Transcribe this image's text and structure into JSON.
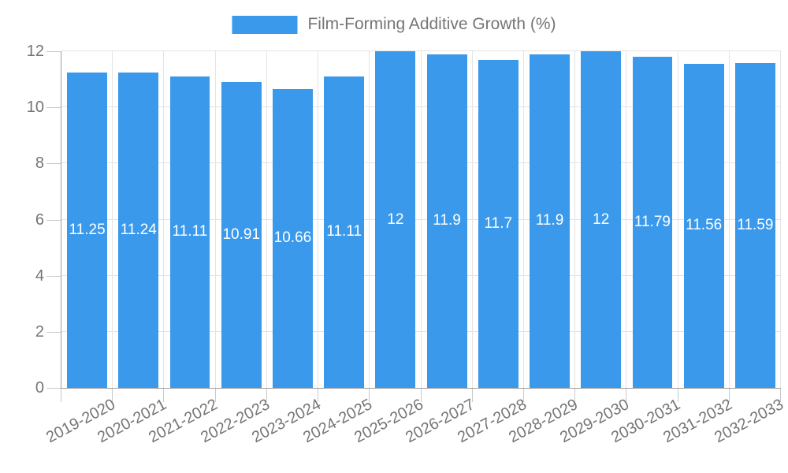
{
  "chart_data": {
    "type": "bar",
    "title": "Film-Forming Additive Growth (%)",
    "categories": [
      "2019-2020",
      "2020-2021",
      "2021-2022",
      "2022-2023",
      "2023-2024",
      "2024-2025",
      "2025-2026",
      "2026-2027",
      "2027-2028",
      "2028-2029",
      "2029-2030",
      "2030-2031",
      "2031-2032",
      "2032-2033"
    ],
    "values": [
      11.25,
      11.24,
      11.11,
      10.91,
      10.66,
      11.11,
      12,
      11.9,
      11.7,
      11.9,
      12,
      11.79,
      11.56,
      11.59
    ],
    "value_labels": [
      "11.25",
      "11.24",
      "11.11",
      "10.91",
      "10.66",
      "11.11",
      "12",
      "11.9",
      "11.7",
      "11.9",
      "12",
      "11.79",
      "11.56",
      "11.59"
    ],
    "xlabel": "",
    "ylabel": "",
    "ylim": [
      0,
      12
    ],
    "yticks": [
      0,
      2,
      4,
      6,
      8,
      10,
      12
    ],
    "grid": true,
    "legend_position": "top-center",
    "value_label_position": "bar-center",
    "colors": {
      "bar": "#3B99EC",
      "grid": "#E4E4E4",
      "axis": "#9E9E9E",
      "tick": "#C9C9C9",
      "text": "#757575",
      "value_text": "#FFFFFF",
      "background": "#FFFFFF"
    }
  }
}
